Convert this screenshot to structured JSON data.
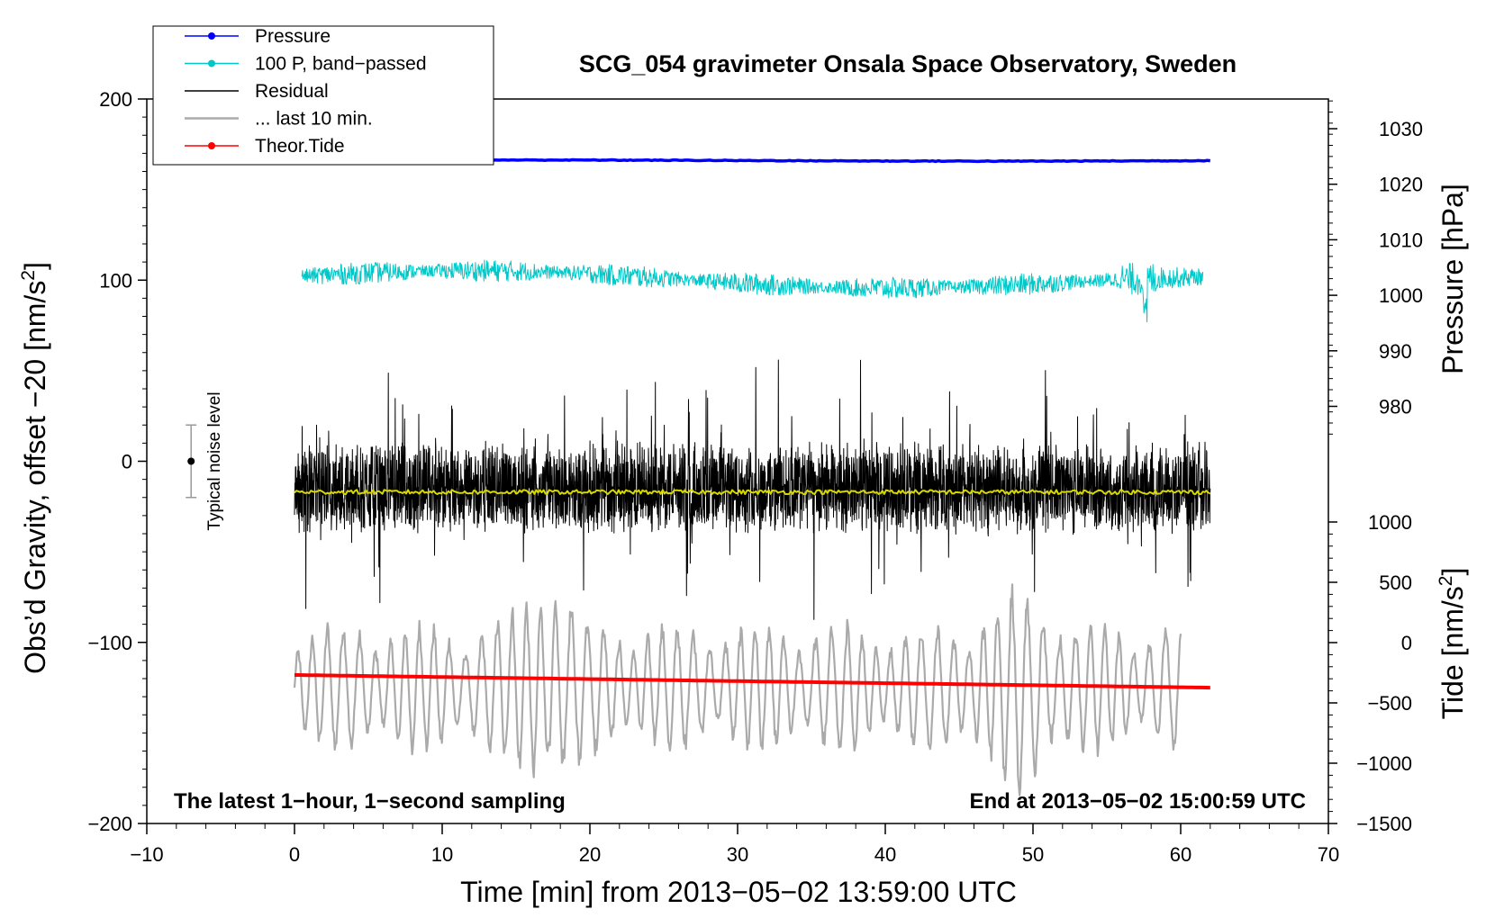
{
  "chart_data": {
    "type": "line",
    "title": "SCG_054 gravimeter Onsala Space Observatory, Sweden",
    "xlabel": "Time [min] from 2013−05−02 13:59:00 UTC",
    "ylabel": "Obs’d Gravity, offset −20 [nm/s",
    "ylabel_sup": "2",
    "ylabel_end": "]",
    "y2_pressure_label": "Pressure [hPa]",
    "y2_tide_label": "Tide [nm/s",
    "y2_tide_sup": "2",
    "y2_tide_end": "]",
    "xlim": [
      -10,
      70
    ],
    "ylim": [
      -200,
      200
    ],
    "x_ticks": [
      -10,
      0,
      10,
      20,
      30,
      40,
      50,
      60,
      70
    ],
    "x_tick_labels": [
      "−10",
      "0",
      "10",
      "20",
      "30",
      "40",
      "50",
      "60",
      "70"
    ],
    "y_ticks": [
      -200,
      -100,
      0,
      100,
      200
    ],
    "y_tick_labels": [
      "−200",
      "−100",
      "0",
      "100",
      "200"
    ],
    "pressure_ticks": [
      980,
      990,
      1000,
      1010,
      1020,
      1030
    ],
    "pressure_tick_labels": [
      "980",
      "990",
      "1000",
      "1010",
      "1020",
      "1030"
    ],
    "tide_ticks": [
      -1500,
      -1000,
      -500,
      0,
      500,
      1000
    ],
    "tide_tick_labels": [
      "−1500",
      "−1000",
      "−500",
      "0",
      "500",
      "1000"
    ],
    "annotation_left": "The latest 1−hour, 1−second sampling",
    "annotation_right": "End at 2013−05−02 15:00:59 UTC",
    "noise_label": "Typical noise level",
    "noise_bar": {
      "x": -7,
      "y_center": 0,
      "y_low": -20,
      "y_high": 20
    },
    "legend": [
      {
        "label": "Pressure",
        "color": "#0000ff",
        "marker": true
      },
      {
        "label": "100 P, band−passed",
        "color": "#00c8c8",
        "marker": true
      },
      {
        "label": "Residual",
        "color": "#000000",
        "marker": false
      },
      {
        "label": "... last 10 min.",
        "color": "#aaaaaa",
        "marker": false
      },
      {
        "label": "Theor.Tide",
        "color": "#ff0000",
        "marker": true
      }
    ],
    "grid": false,
    "series": [
      {
        "name": "Pressure",
        "color": "#0000ff",
        "x_range": [
          0,
          62
        ],
        "approx_level": 166
      },
      {
        "name": "100 P, band−passed",
        "color": "#00c8c8",
        "x_range": [
          0.5,
          61.5
        ],
        "approx_level": 100,
        "approx_amplitude": 10
      },
      {
        "name": "Residual",
        "color": "#000000",
        "x_range": [
          0,
          62
        ],
        "approx_level": -15,
        "approx_amplitude": 40
      },
      {
        "name": "residual mean",
        "color": "#d8d800",
        "x_range": [
          0,
          62
        ],
        "approx_level": -17
      },
      {
        "name": "... last 10 min.",
        "color": "#aaaaaa",
        "x_range": [
          0,
          60
        ],
        "approx_level": -125,
        "approx_amplitude": 45
      },
      {
        "name": "Theor.Tide",
        "color": "#ff0000",
        "x_range": [
          0,
          62
        ],
        "values_start": -118,
        "values_end": -125
      }
    ]
  }
}
